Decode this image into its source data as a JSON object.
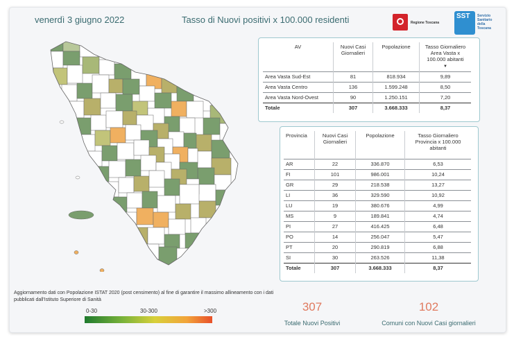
{
  "header": {
    "date": "venerdì 3 giugno 2022",
    "title": "Tasso di Nuovi positivi x 100.000 residenti",
    "logo_regione": "Regione Toscana",
    "logo_sst_short": "SST",
    "logo_sst_full": [
      "Servizio",
      "Sanitario",
      "della",
      "Toscana"
    ]
  },
  "area_table": {
    "headers": [
      "AV",
      "Nuovi Casi Giornalieri",
      "Popolazione",
      "Tasso Giornaliero Area Vasta x 100.000 abitanti"
    ],
    "rows": [
      [
        "Area Vasta Sud-Est",
        "81",
        "818.934",
        "9,89"
      ],
      [
        "Area Vasta Centro",
        "136",
        "1.599.248",
        "8,50"
      ],
      [
        "Area Vasta Nord-Ovest",
        "90",
        "1.250.151",
        "7,20"
      ]
    ],
    "total": [
      "Totale",
      "307",
      "3.668.333",
      "8,37"
    ]
  },
  "province_table": {
    "headers": [
      "Provincia",
      "Nuovi Casi Giornalieri",
      "Popolazione",
      "Tasso Giornaliero Provincia x 100.000 abitanti"
    ],
    "rows": [
      [
        "AR",
        "22",
        "336.870",
        "6,53"
      ],
      [
        "FI",
        "101",
        "986.001",
        "10,24"
      ],
      [
        "GR",
        "29",
        "218.538",
        "13,27"
      ],
      [
        "LI",
        "36",
        "329.590",
        "10,92"
      ],
      [
        "LU",
        "19",
        "380.676",
        "4,99"
      ],
      [
        "MS",
        "9",
        "189.841",
        "4,74"
      ],
      [
        "PI",
        "27",
        "416.425",
        "6,48"
      ],
      [
        "PO",
        "14",
        "256.047",
        "5,47"
      ],
      [
        "PT",
        "20",
        "290.819",
        "6,88"
      ],
      [
        "SI",
        "30",
        "263.526",
        "11,38"
      ]
    ],
    "total": [
      "Totale",
      "307",
      "3.668.333",
      "8,37"
    ]
  },
  "note": "Aggiornamento dati con Popolazione ISTAT 2020 (post censimento) al fine di garantire il massimo allineamento con i dati pubblicati dall'Istituto Superiore di Sanità",
  "legend": {
    "labels": [
      "0-30",
      "30-300",
      ">300"
    ],
    "colors": [
      "#1f7a2e",
      "#d8d03a",
      "#e8502a"
    ]
  },
  "kpi": {
    "positivi_value": "307",
    "positivi_label": "Totale Nuovi Positivi",
    "comuni_value": "102",
    "comuni_label": "Comuni con Nuovi Casi giornalieri"
  },
  "colors": {
    "accent_text": "#3a6b70",
    "kpi_number": "#e07a5f",
    "panel_border": "#9ec8cf",
    "map_low": "#7a9e6e",
    "map_mid": "#b8b06a",
    "map_high": "#f0b060"
  }
}
